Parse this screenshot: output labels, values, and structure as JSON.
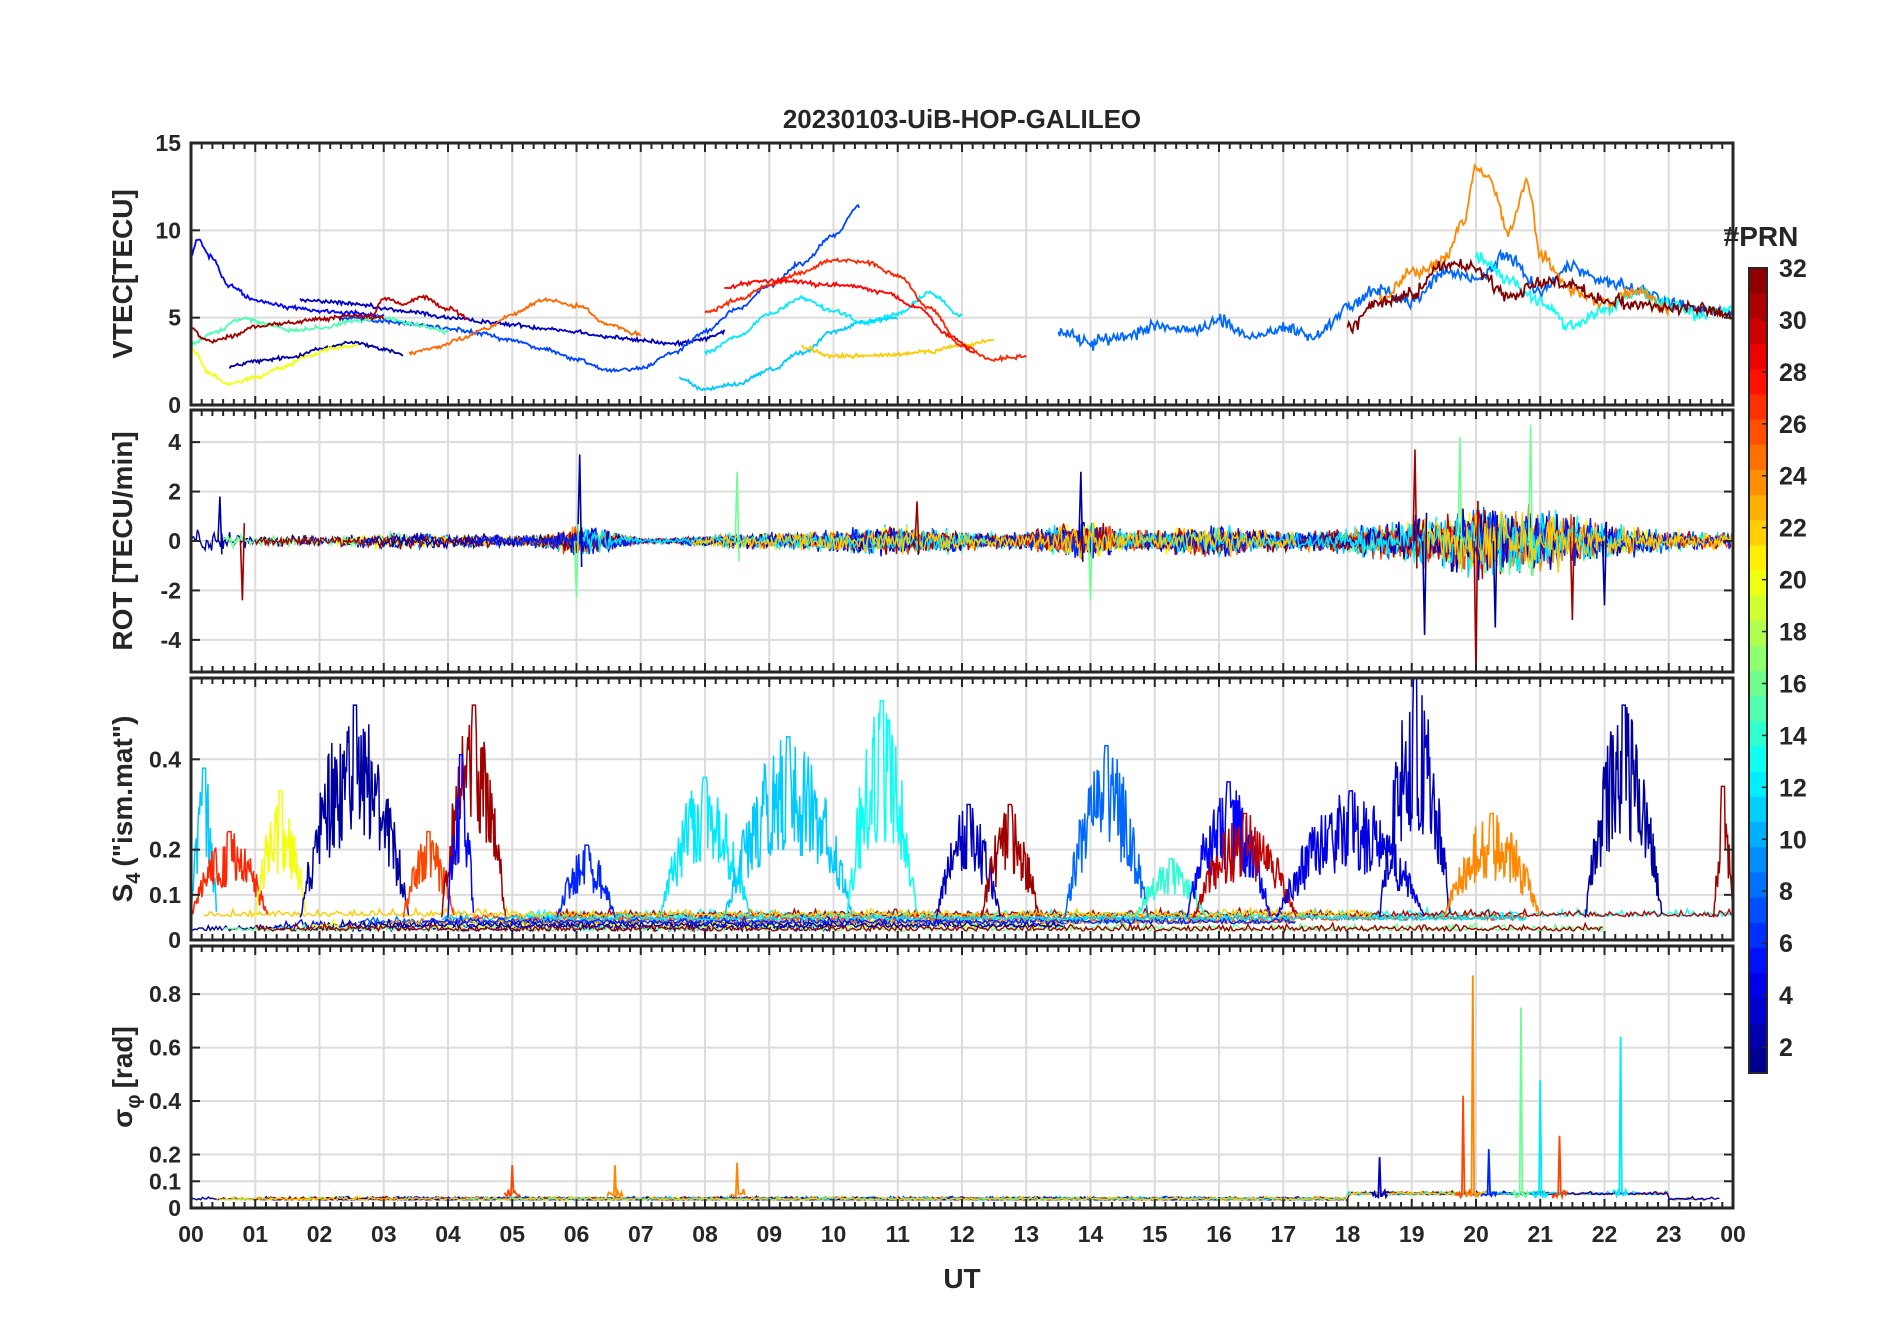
{
  "chart_data": [
    {
      "type": "line",
      "title": "20230103-UiB-HOP-GALILEO",
      "ylabel": "VTEC[TECU]",
      "ylim": [
        0,
        15
      ],
      "yticks": [
        0,
        5,
        10,
        15
      ],
      "series": [
        {
          "name": "PRN 2",
          "prn": 2,
          "x": [
            0.6,
            1.0,
            1.5,
            2.0,
            2.5,
            3.0,
            3.3
          ],
          "values": [
            2.2,
            2.5,
            2.7,
            3.2,
            3.6,
            3.2,
            2.9
          ]
        },
        {
          "name": "PRN 3",
          "prn": 3,
          "x": [
            1.7,
            2.2,
            2.7,
            3.0,
            3.5,
            4.0,
            4.5,
            5.0,
            5.5,
            6.0,
            6.5,
            7.0,
            7.5,
            8.0,
            8.3
          ],
          "values": [
            6.0,
            5.9,
            5.7,
            5.5,
            5.3,
            5.0,
            4.8,
            4.6,
            4.4,
            4.2,
            3.9,
            3.7,
            3.5,
            3.8,
            4.2
          ]
        },
        {
          "name": "PRN 5",
          "prn": 5,
          "x": [
            0.0,
            0.1,
            0.3,
            0.6,
            1.0,
            1.5,
            2.0,
            2.5,
            3.0
          ],
          "values": [
            8.5,
            9.5,
            8.5,
            6.8,
            6.0,
            5.6,
            5.4,
            5.3,
            5.1
          ]
        },
        {
          "name": "PRN 7",
          "prn": 7,
          "x": [
            2.3,
            3.0,
            3.5,
            4.0,
            4.5,
            5.0,
            5.5,
            6.0,
            6.5,
            7.0,
            7.5,
            8.0,
            8.5,
            9.0,
            9.5,
            10.0,
            10.4
          ],
          "values": [
            5.0,
            4.8,
            4.6,
            4.4,
            4.1,
            3.7,
            3.2,
            2.6,
            2.0,
            2.1,
            3.0,
            4.2,
            5.5,
            6.8,
            8.1,
            9.7,
            11.4
          ]
        },
        {
          "name": "PRN 8",
          "prn": 8,
          "x": [
            13.5,
            14.0,
            14.5,
            15.0,
            15.5,
            16.0,
            16.5,
            17.0,
            17.5,
            18.0,
            18.5,
            19.0,
            19.5,
            20.0,
            20.5,
            21.0,
            21.5,
            22.0,
            22.5,
            23.0,
            23.5,
            24.0
          ],
          "values": [
            4.2,
            3.6,
            3.9,
            4.6,
            4.2,
            4.8,
            3.9,
            4.4,
            3.9,
            5.6,
            6.6,
            5.9,
            7.6,
            7.2,
            8.5,
            6.6,
            7.9,
            7.1,
            6.6,
            5.9,
            5.4,
            5.3
          ]
        },
        {
          "name": "PRN 11",
          "prn": 11,
          "x": [
            7.6,
            8.0,
            8.5,
            9.0,
            9.5,
            10.0,
            10.5,
            11.0
          ],
          "values": [
            1.5,
            0.9,
            1.2,
            2.0,
            3.0,
            4.2,
            4.8,
            5.0
          ]
        },
        {
          "name": "PRN 12",
          "prn": 12,
          "x": [
            8.0,
            8.5,
            9.0,
            9.5,
            10.0,
            10.5,
            11.0,
            11.5,
            12.0
          ],
          "values": [
            3.0,
            3.9,
            5.2,
            6.1,
            5.4,
            4.7,
            5.2,
            6.4,
            5.1
          ]
        },
        {
          "name": "PRN 13",
          "prn": 13,
          "x": [
            20.0,
            20.5,
            21.0,
            21.5,
            22.0,
            22.5,
            23.0,
            23.5,
            24.0
          ],
          "values": [
            8.5,
            7.2,
            5.9,
            4.5,
            5.5,
            6.5,
            5.7,
            5.2,
            5.6
          ]
        },
        {
          "name": "PRN 15",
          "prn": 15,
          "x": [
            0.0,
            0.4,
            0.8,
            1.2,
            1.6,
            2.0,
            2.5,
            3.0,
            3.5,
            4.0
          ],
          "values": [
            3.5,
            4.2,
            5.0,
            4.6,
            4.3,
            4.4,
            4.8,
            5.0,
            4.6,
            4.2
          ]
        },
        {
          "name": "PRN 20",
          "prn": 20,
          "x": [
            0.0,
            0.3,
            0.6,
            1.0,
            1.4,
            1.8,
            2.2,
            2.6
          ],
          "values": [
            3.2,
            1.8,
            1.2,
            1.6,
            2.1,
            2.8,
            3.2,
            3.4
          ]
        },
        {
          "name": "PRN 22",
          "prn": 22,
          "x": [
            9.5,
            10.0,
            10.5,
            11.0,
            11.5,
            12.0,
            12.5
          ],
          "values": [
            3.3,
            2.8,
            2.8,
            2.9,
            3.1,
            3.4,
            3.7
          ]
        },
        {
          "name": "PRN 24",
          "prn": 24,
          "x": [
            18.5,
            19.0,
            19.5,
            19.8,
            20.0,
            20.2,
            20.5,
            20.8,
            21.0,
            21.5,
            22.0,
            22.5,
            23.0
          ],
          "values": [
            6.0,
            7.5,
            8.2,
            10.5,
            13.6,
            13.0,
            10.0,
            12.8,
            8.5,
            6.5,
            5.8,
            6.5,
            5.5
          ]
        },
        {
          "name": "PRN 25",
          "prn": 25,
          "x": [
            3.4,
            3.8,
            4.2,
            4.6,
            5.0,
            5.5,
            6.0,
            6.5,
            7.0
          ],
          "values": [
            3.0,
            3.3,
            3.8,
            4.4,
            5.2,
            6.0,
            5.7,
            4.6,
            4.0
          ]
        },
        {
          "name": "PRN 27",
          "prn": 27,
          "x": [
            8.0,
            8.5,
            9.0,
            9.5,
            10.0,
            10.5,
            11.0,
            11.5,
            12.0,
            12.5,
            13.0
          ],
          "values": [
            5.3,
            6.0,
            6.9,
            7.6,
            8.3,
            8.2,
            7.4,
            5.5,
            3.4,
            2.6,
            2.8
          ]
        },
        {
          "name": "PRN 28",
          "prn": 28,
          "x": [
            8.3,
            8.8,
            9.3,
            9.8,
            10.3,
            10.8,
            11.3,
            11.8,
            12.2
          ],
          "values": [
            6.7,
            7.1,
            7.1,
            6.9,
            6.8,
            6.4,
            5.6,
            4.0,
            3.0
          ]
        },
        {
          "name": "PRN 30",
          "prn": 30,
          "x": [
            2.8,
            3.0,
            3.3,
            3.6,
            4.0,
            4.3
          ],
          "values": [
            5.1,
            6.1,
            5.8,
            6.2,
            5.5,
            5.0
          ]
        },
        {
          "name": "PRN 31",
          "prn": 31,
          "x": [
            0.0,
            0.3,
            0.6,
            1.0,
            1.5,
            2.0,
            2.5,
            3.0
          ],
          "values": [
            4.3,
            3.6,
            3.9,
            4.5,
            4.7,
            4.9,
            5.1,
            5.0
          ]
        },
        {
          "name": "PRN 32",
          "prn": 32,
          "x": [
            18.0,
            18.5,
            19.0,
            19.5,
            20.0,
            20.5,
            21.0,
            21.5,
            22.0,
            22.5,
            23.0,
            23.5,
            24.0
          ],
          "values": [
            4.4,
            5.9,
            6.3,
            8.1,
            7.8,
            6.2,
            7.1,
            6.9,
            6.0,
            5.8,
            5.6,
            5.5,
            5.1
          ]
        }
      ]
    },
    {
      "type": "line",
      "ylabel": "ROT [TECU/min]",
      "ylim": [
        -5.3,
        5.3
      ],
      "yticks": [
        -4,
        -2,
        0,
        2,
        4
      ],
      "envelope": {
        "x": [
          0,
          0.5,
          1,
          1.5,
          2,
          2.5,
          3,
          3.5,
          4,
          4.5,
          5,
          5.5,
          6,
          6.5,
          7,
          7.5,
          8,
          8.5,
          9,
          9.5,
          10,
          10.5,
          11,
          11.5,
          12,
          12.5,
          13,
          13.5,
          14,
          14.5,
          15,
          15.5,
          16,
          16.5,
          17,
          17.5,
          18,
          18.5,
          19,
          19.5,
          20,
          20.5,
          21,
          21.5,
          22,
          22.5,
          23,
          23.5,
          24
        ],
        "amplitude": [
          0.8,
          0.5,
          0.35,
          0.3,
          0.3,
          0.35,
          0.5,
          0.45,
          0.4,
          0.35,
          0.3,
          0.4,
          0.9,
          0.6,
          0.15,
          0.15,
          0.3,
          0.4,
          0.45,
          0.5,
          0.6,
          0.7,
          0.8,
          0.75,
          0.6,
          0.45,
          0.5,
          0.9,
          1.1,
          0.6,
          0.6,
          0.8,
          0.9,
          0.7,
          0.5,
          0.6,
          0.8,
          1.0,
          1.3,
          1.5,
          2.2,
          2.0,
          1.8,
          1.4,
          1.1,
          0.8,
          0.6,
          0.5,
          0.5
        ]
      },
      "spikes": [
        {
          "x": 6.05,
          "y": 3.5
        },
        {
          "x": 6.0,
          "y": -2.3
        },
        {
          "x": 0.8,
          "y": -2.4
        },
        {
          "x": 0.45,
          "y": 1.8
        },
        {
          "x": 8.5,
          "y": 2.8
        },
        {
          "x": 11.3,
          "y": 1.6
        },
        {
          "x": 13.85,
          "y": 2.8
        },
        {
          "x": 14.0,
          "y": -2.4
        },
        {
          "x": 19.05,
          "y": 3.7
        },
        {
          "x": 19.2,
          "y": -3.8
        },
        {
          "x": 19.75,
          "y": 4.2
        },
        {
          "x": 20.0,
          "y": -5.4
        },
        {
          "x": 20.3,
          "y": -3.5
        },
        {
          "x": 20.85,
          "y": 4.7
        },
        {
          "x": 21.5,
          "y": -3.2
        },
        {
          "x": 22.0,
          "y": -2.6
        }
      ]
    },
    {
      "type": "line",
      "ylabel": "S4 (\"ism.mat\")",
      "ylabel_main": "S",
      "ylabel_sub": "4",
      "ylabel_tail": "(\"ism.mat\")",
      "ylim": [
        0,
        0.58
      ],
      "yticks": [
        0,
        0.1,
        0.2,
        0.4
      ],
      "bursts": [
        {
          "x0": 0.0,
          "x1": 0.4,
          "peak": 0.38,
          "prn": 11
        },
        {
          "x0": 0.0,
          "x1": 1.2,
          "peak": 0.24,
          "prn": 27
        },
        {
          "x0": 1.0,
          "x1": 1.8,
          "peak": 0.33,
          "prn": 20
        },
        {
          "x0": 1.7,
          "x1": 3.4,
          "peak": 0.52,
          "prn": 2
        },
        {
          "x0": 3.3,
          "x1": 4.1,
          "peak": 0.24,
          "prn": 26
        },
        {
          "x0": 3.9,
          "x1": 4.9,
          "peak": 0.52,
          "prn": 31
        },
        {
          "x0": 4.0,
          "x1": 4.4,
          "peak": 0.41,
          "prn": 5
        },
        {
          "x0": 5.7,
          "x1": 6.6,
          "peak": 0.21,
          "prn": 6
        },
        {
          "x0": 7.3,
          "x1": 8.7,
          "peak": 0.36,
          "prn": 12
        },
        {
          "x0": 8.3,
          "x1": 10.3,
          "peak": 0.45,
          "prn": 11
        },
        {
          "x0": 10.2,
          "x1": 11.3,
          "peak": 0.53,
          "prn": 13
        },
        {
          "x0": 11.6,
          "x1": 12.6,
          "peak": 0.3,
          "prn": 3
        },
        {
          "x0": 12.3,
          "x1": 13.2,
          "peak": 0.3,
          "prn": 31
        },
        {
          "x0": 13.6,
          "x1": 14.9,
          "peak": 0.43,
          "prn": 8
        },
        {
          "x0": 14.7,
          "x1": 15.8,
          "peak": 0.18,
          "prn": 14
        },
        {
          "x0": 15.5,
          "x1": 16.8,
          "peak": 0.35,
          "prn": 5
        },
        {
          "x0": 15.6,
          "x1": 17.2,
          "peak": 0.28,
          "prn": 30
        },
        {
          "x0": 16.9,
          "x1": 19.2,
          "peak": 0.33,
          "prn": 4
        },
        {
          "x0": 18.5,
          "x1": 19.6,
          "peak": 0.58,
          "prn": 3
        },
        {
          "x0": 19.5,
          "x1": 21.0,
          "peak": 0.28,
          "prn": 24
        },
        {
          "x0": 21.7,
          "x1": 22.9,
          "peak": 0.52,
          "prn": 2
        },
        {
          "x0": 23.7,
          "x1": 24.0,
          "peak": 0.34,
          "prn": 31
        }
      ]
    },
    {
      "type": "line",
      "ylabel": "σφ[rad]",
      "ylabel_main": "σ",
      "ylabel_sub": "φ",
      "ylabel_tail": "[rad]",
      "ylim": [
        0,
        0.98
      ],
      "yticks": [
        0,
        0.1,
        0.2,
        0.4,
        0.6,
        0.8
      ],
      "spikes": [
        {
          "x": 5.0,
          "y": 0.16,
          "prn": 26
        },
        {
          "x": 6.6,
          "y": 0.16,
          "prn": 24
        },
        {
          "x": 8.5,
          "y": 0.17,
          "prn": 24
        },
        {
          "x": 18.5,
          "y": 0.19,
          "prn": 3
        },
        {
          "x": 19.8,
          "y": 0.42,
          "prn": 26
        },
        {
          "x": 19.95,
          "y": 0.87,
          "prn": 24
        },
        {
          "x": 20.2,
          "y": 0.22,
          "prn": 6
        },
        {
          "x": 20.7,
          "y": 0.75,
          "prn": 16
        },
        {
          "x": 21.0,
          "y": 0.48,
          "prn": 12
        },
        {
          "x": 21.3,
          "y": 0.27,
          "prn": 26
        },
        {
          "x": 22.25,
          "y": 0.64,
          "prn": 12
        }
      ]
    }
  ],
  "xaxis": {
    "label": "UT",
    "xlim": [
      0,
      24
    ],
    "ticks": [
      "00",
      "01",
      "02",
      "03",
      "04",
      "05",
      "06",
      "07",
      "08",
      "09",
      "10",
      "11",
      "12",
      "13",
      "14",
      "15",
      "16",
      "17",
      "18",
      "19",
      "20",
      "21",
      "22",
      "23",
      "00"
    ]
  },
  "colorbar": {
    "title": "#PRN",
    "range": [
      1,
      32
    ],
    "ticks": [
      2,
      4,
      6,
      8,
      10,
      12,
      14,
      16,
      18,
      20,
      22,
      24,
      26,
      28,
      30,
      32
    ]
  }
}
